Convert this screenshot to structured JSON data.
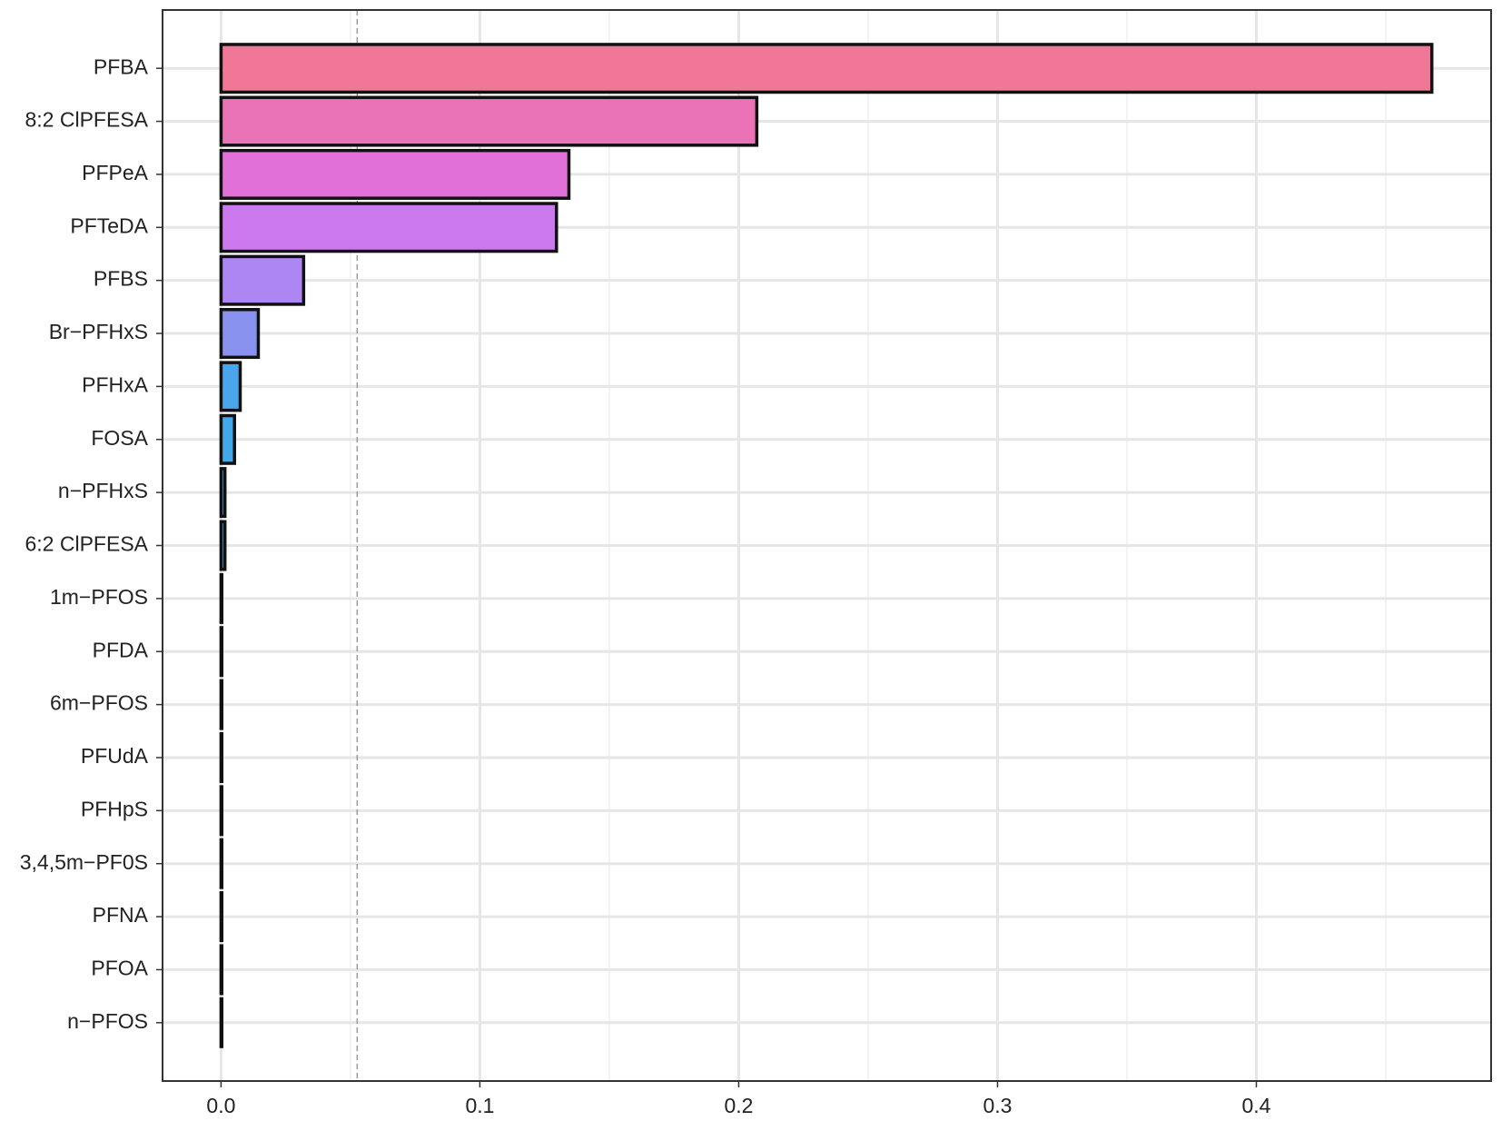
{
  "chart_data": {
    "type": "barh",
    "categories": [
      "PFBA",
      "8:2 ClPFESA",
      "PFPeA",
      "PFTeDA",
      "PFBS",
      "Br−PFHxS",
      "PFHxA",
      "FOSA",
      "n−PFHxS",
      "6:2 ClPFESA",
      "1m−PFOS",
      "PFDA",
      "6m−PFOS",
      "PFUdA",
      "PFHpS",
      "3,4,5m−PF0S",
      "PFNA",
      "PFOA",
      "n−PFOS"
    ],
    "values": [
      0.4678,
      0.207,
      0.1344,
      0.1296,
      0.0319,
      0.0144,
      0.0074,
      0.0052,
      0.0015,
      0.0015,
      0.0003,
      0.0003,
      0.0003,
      0.0003,
      0.0003,
      0.0003,
      0.0003,
      0.0003,
      0.0003
    ],
    "colors": [
      "#f07896",
      "#ea72b6",
      "#e170d8",
      "#cc78ee",
      "#ae86f4",
      "#8a92f0",
      "#4aa6ec",
      "#42a8e8",
      "#3aaae6",
      "#3aaae6",
      "#3aaae6",
      "#3aaae6",
      "#3aaae6",
      "#3aaae6",
      "#3aaae6",
      "#3aaae6",
      "#3aaae6",
      "#3aaae6",
      "#3aaae6"
    ],
    "xlim": [
      -0.0226,
      0.4907
    ],
    "xticks": [
      {
        "value": 0,
        "label": "0.0"
      },
      0.1,
      0.2,
      0.3,
      0.4
    ],
    "x_minor_grid": [
      0.05,
      0.15,
      0.25,
      0.35,
      0.45
    ],
    "reference_line": 0.0526,
    "grid": true
  }
}
